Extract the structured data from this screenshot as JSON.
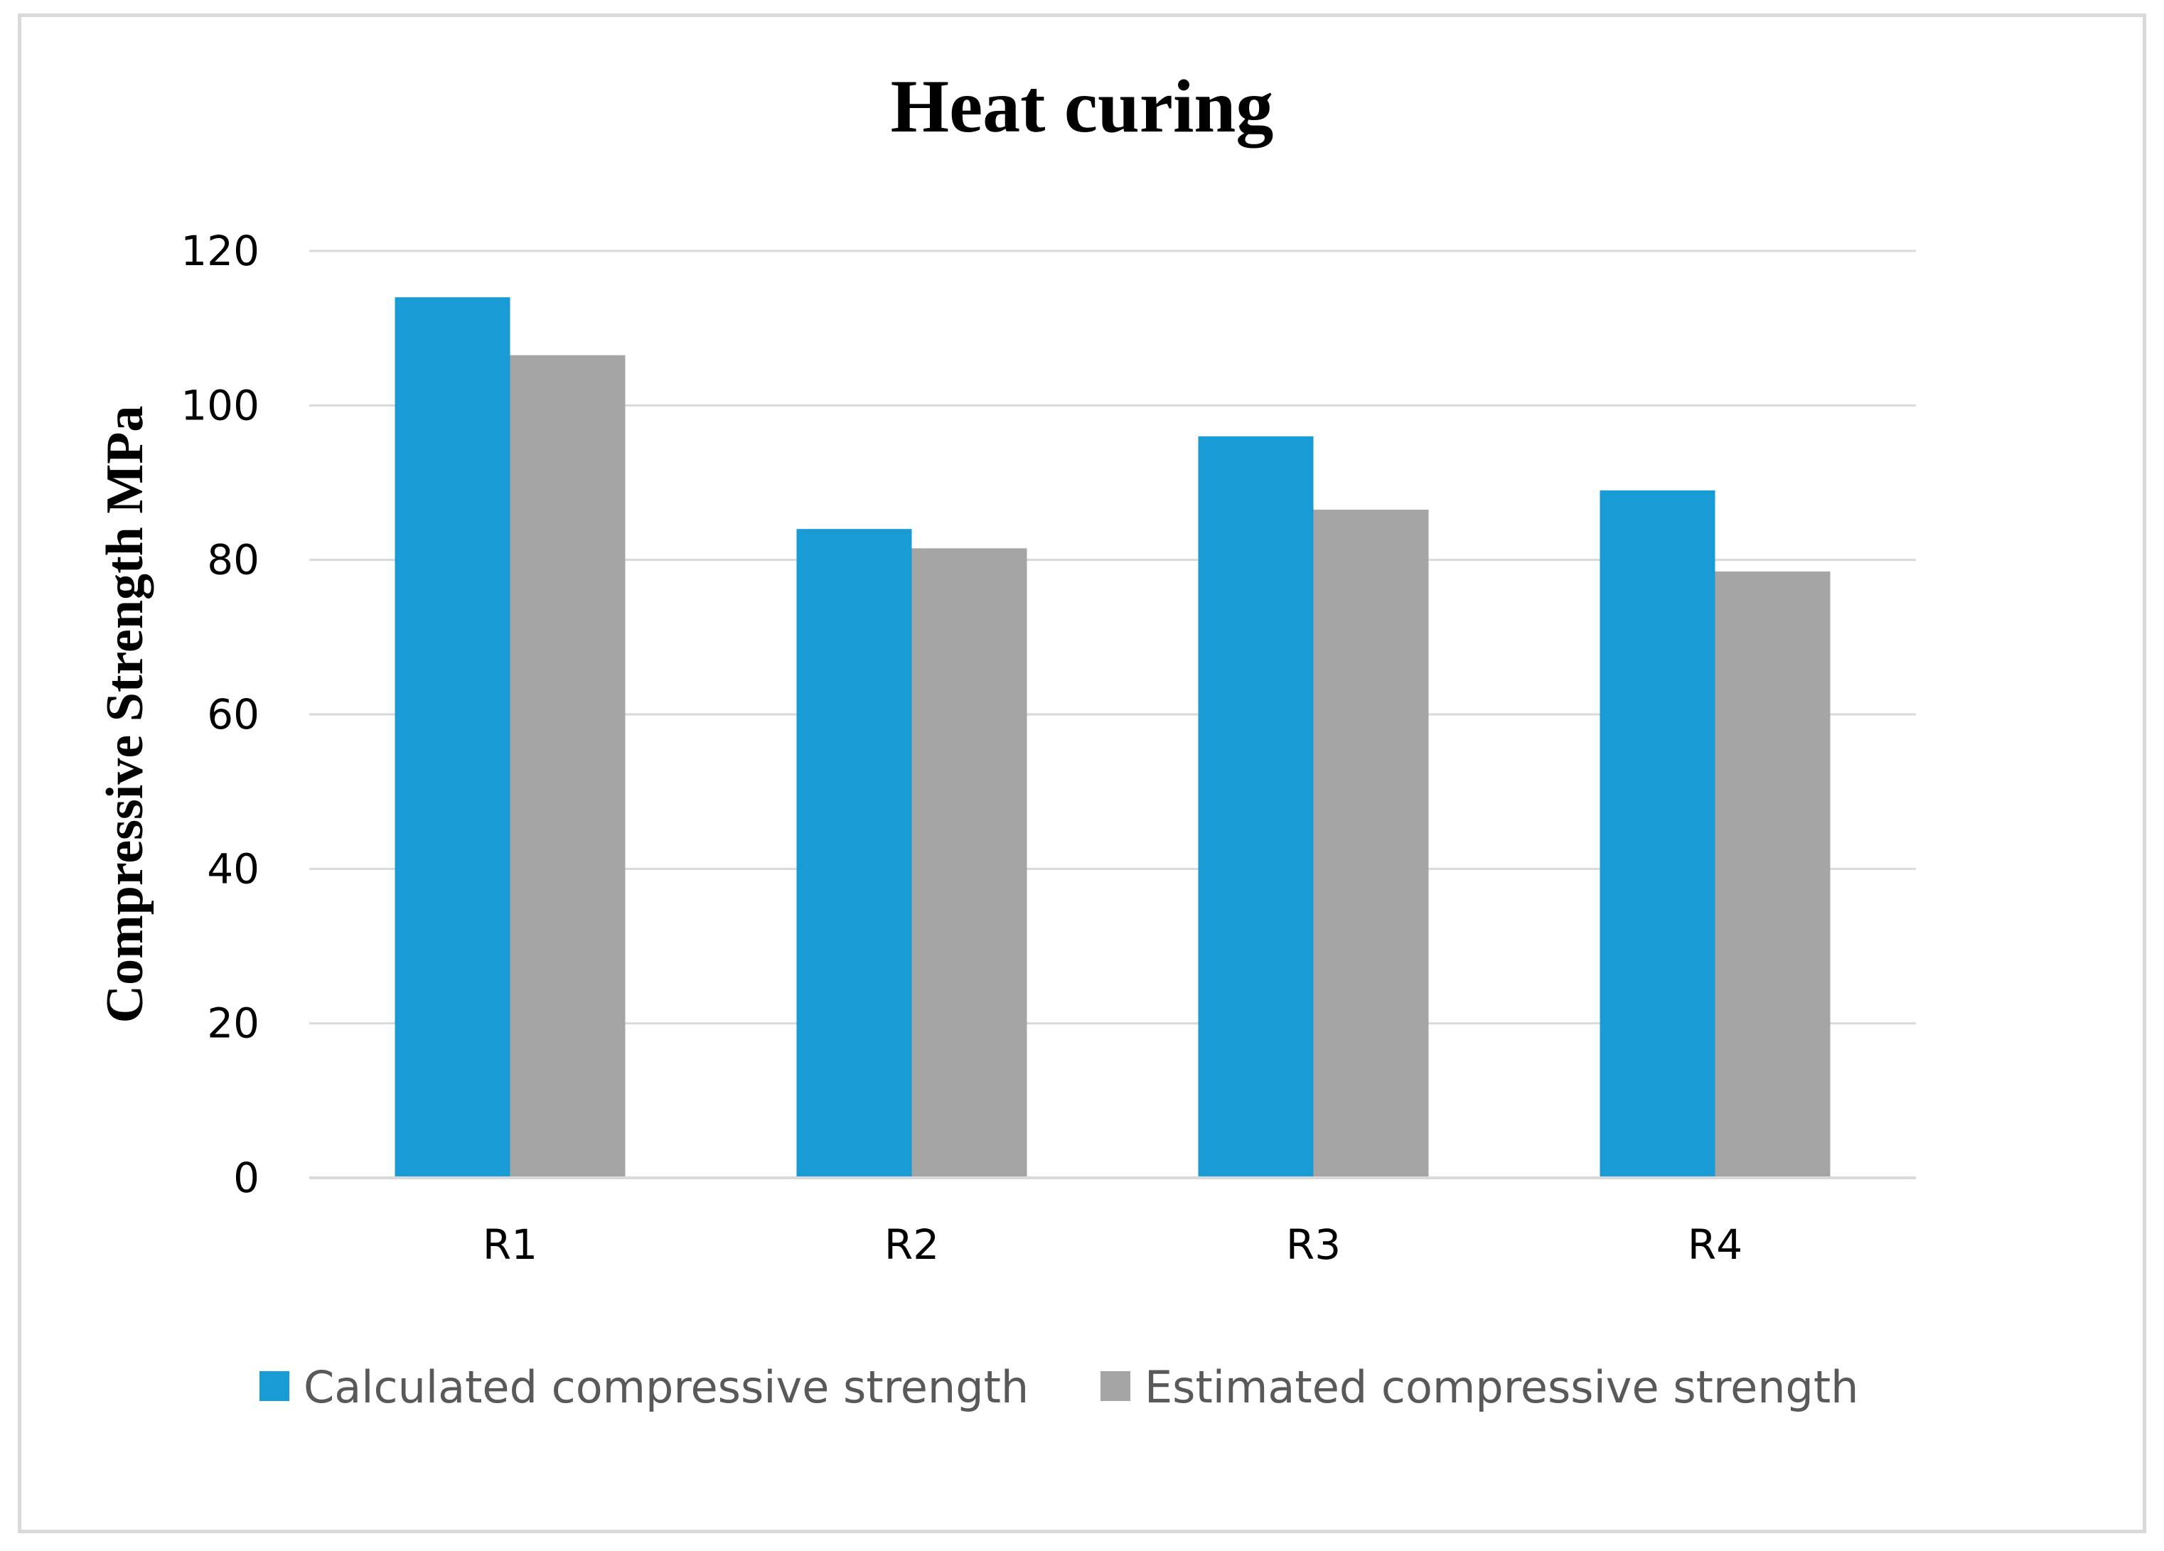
{
  "chart_data": {
    "type": "bar",
    "title": "Heat curing",
    "xlabel": "",
    "ylabel": "Compressive Strength MPa",
    "categories": [
      "R1",
      "R2",
      "R3",
      "R4"
    ],
    "series": [
      {
        "name": "Calculated compressive strength",
        "color": "#199bd6",
        "values": [
          114,
          84,
          96,
          89
        ]
      },
      {
        "name": "Estimated compressive strength",
        "color": "#a5a5a5",
        "values": [
          106.5,
          81.5,
          86.5,
          78.5
        ]
      }
    ],
    "ylim": [
      0,
      120
    ],
    "yticks": [
      0,
      20,
      40,
      60,
      80,
      100,
      120
    ],
    "ytick_labels": [
      "0",
      "20",
      "40",
      "60",
      "80",
      "100",
      "120"
    ],
    "grid": true,
    "legend_position": "bottom"
  }
}
